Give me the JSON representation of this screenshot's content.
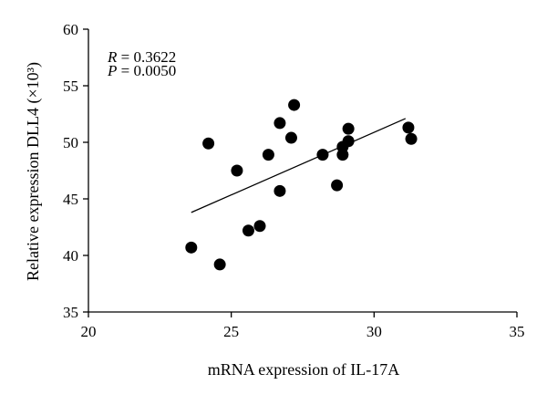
{
  "chart_data": {
    "type": "scatter",
    "xlabel": "mRNA expression of IL-17A",
    "ylabel": "Relative expression DLL4 (×10³)",
    "xlim": [
      20,
      35
    ],
    "ylim": [
      35,
      60
    ],
    "xticks": [
      20,
      25,
      30,
      35
    ],
    "yticks": [
      35,
      40,
      45,
      50,
      55,
      60
    ],
    "grid": false,
    "annotations": {
      "r_label": "R",
      "r_value": " = 0.3622",
      "p_label": "P",
      "p_value": " = 0.0050"
    },
    "points": [
      {
        "x": 23.6,
        "y": 40.7
      },
      {
        "x": 24.2,
        "y": 49.9
      },
      {
        "x": 24.6,
        "y": 39.2
      },
      {
        "x": 25.2,
        "y": 47.5
      },
      {
        "x": 25.6,
        "y": 42.2
      },
      {
        "x": 26.0,
        "y": 42.6
      },
      {
        "x": 26.3,
        "y": 48.9
      },
      {
        "x": 26.7,
        "y": 45.7
      },
      {
        "x": 26.7,
        "y": 51.7
      },
      {
        "x": 27.1,
        "y": 50.4
      },
      {
        "x": 27.2,
        "y": 53.3
      },
      {
        "x": 28.2,
        "y": 48.9
      },
      {
        "x": 28.7,
        "y": 46.2
      },
      {
        "x": 28.9,
        "y": 48.9
      },
      {
        "x": 28.9,
        "y": 49.6
      },
      {
        "x": 29.1,
        "y": 50.1
      },
      {
        "x": 29.1,
        "y": 51.2
      },
      {
        "x": 31.2,
        "y": 51.3
      },
      {
        "x": 31.3,
        "y": 50.3
      }
    ],
    "fit_line": {
      "x": [
        23.6,
        31.1
      ],
      "y": [
        43.8,
        52.1
      ]
    }
  }
}
